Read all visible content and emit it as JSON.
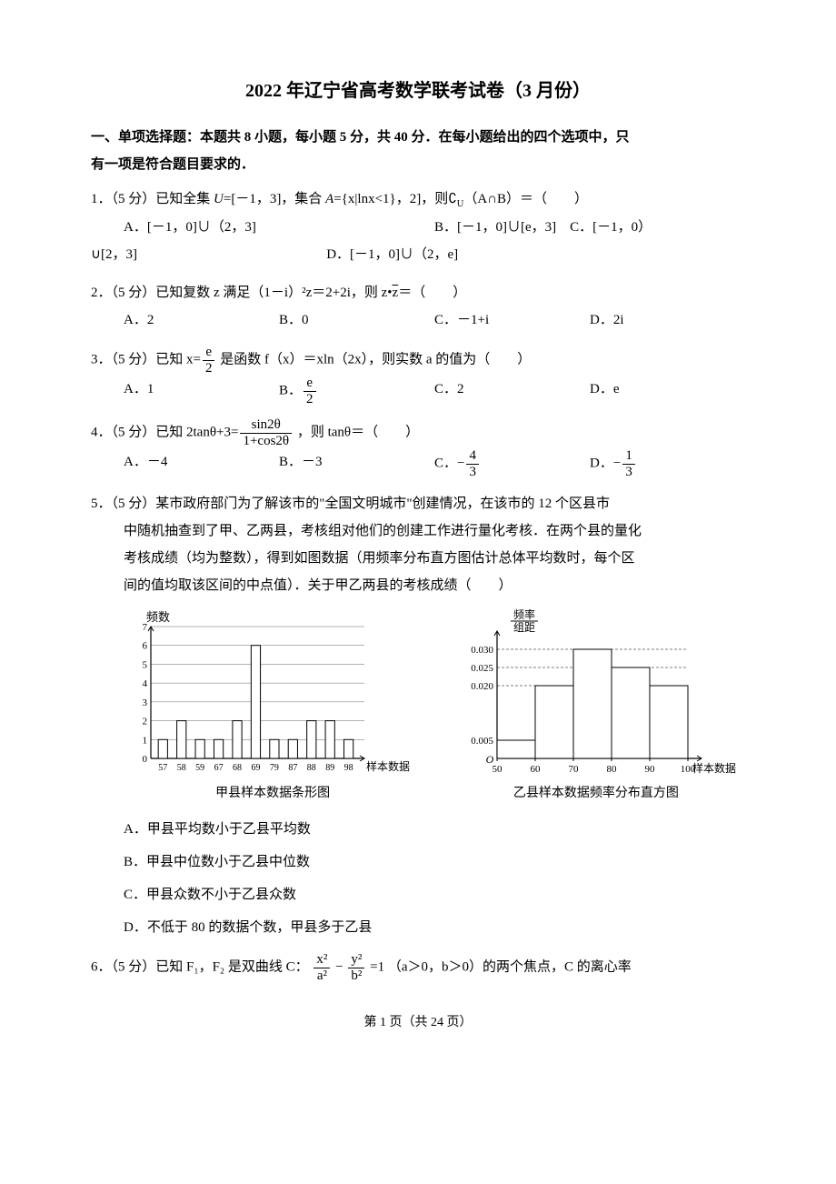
{
  "title": "2022 年辽宁省高考数学联考试卷（3 月份）",
  "section1_header_line1": "一、单项选择题：本题共 8 小题，每小题 5 分，共 40 分．在每小题给出的四个选项中，只",
  "section1_header_line2": "有一项是符合题目要求的．",
  "q1": {
    "text_prefix": "1．（5 分）已知全集 ",
    "text_mid": "=[－1，3]，集合 ",
    "text_end": "={x|lnx<1}，2]，则",
    "text_comp": "（A∩B）＝（　　）",
    "optA": "A．[－1，0]∪（2，3]",
    "optB": "B．[－1，0]∪[e，3]　C．[－1，0）",
    "optC_prefix": "∪[2，3]",
    "optD": "D．[－1，0]∪（2，e]"
  },
  "q2": {
    "text": "2．（5 分）已知复数 z 满足（1－i）²z＝2+2i，则 z•",
    "text_end": "＝（　　）",
    "optA": "A．2",
    "optB": "B．0",
    "optC": "C．－1+i",
    "optD": "D．2i"
  },
  "q3": {
    "text_prefix": "3．（5 分）已知",
    "text_mid": "是函数 f（x）＝xln（2x），则实数 a 的值为（　　）",
    "optA": "A．1",
    "optB": "B．",
    "optC": "C．2",
    "optD": "D．e"
  },
  "q4": {
    "text_prefix": "4．（5 分）已知",
    "text_mid": "，则 tanθ＝（　　）",
    "optA": "A．－4",
    "optB": "B．－3",
    "optC": "C．",
    "optD": "D．",
    "frac1_num": "4",
    "frac1_den": "3",
    "frac2_num": "1",
    "frac2_den": "3"
  },
  "q5": {
    "line1": "5．（5 分）某市政府部门为了解该市的\"全国文明城市\"创建情况，在该市的 12 个区县市",
    "line2": "中随机抽查到了甲、乙两县，考核组对他们的创建工作进行量化考核．在两个县的量化",
    "line3": "考核成绩（均为整数），得到如图数据（用频率分布直方图估计总体平均数时，每个区",
    "line4": "间的值均取该区间的中点值）．关于甲乙两县的考核成绩（　　）",
    "optA": "A．甲县平均数小于乙县平均数",
    "optB": "B．甲县中位数小于乙县中位数",
    "optC": "C．甲县众数不小于乙县众数",
    "optD": "D．不低于 80 的数据个数，甲县多于乙县",
    "chart1_caption": "甲县样本数据条形图",
    "chart2_caption": "乙县样本数据频率分布直方图",
    "chart1": {
      "ylabel": "频数",
      "xlabel": "样本数据",
      "yticks": [
        0,
        1,
        2,
        3,
        4,
        5,
        6,
        7
      ],
      "xticks": [
        "57",
        "58",
        "59",
        "67",
        "68",
        "69",
        "79",
        "87",
        "88",
        "89",
        "98"
      ],
      "values": [
        1,
        2,
        1,
        1,
        2,
        6,
        1,
        1,
        2,
        2,
        1
      ],
      "axis_color": "#000",
      "grid_color": "#666",
      "bar_color": "#ffffff",
      "bar_border": "#000"
    },
    "chart2": {
      "ylabel_top": "频率",
      "ylabel_bot": "组距",
      "xlabel": "样本数据",
      "yticks": [
        "0.005",
        "0.020",
        "0.025",
        "0.030"
      ],
      "ytick_vals": [
        0.005,
        0.02,
        0.025,
        0.03
      ],
      "xticks": [
        "50",
        "60",
        "70",
        "80",
        "90",
        "100"
      ],
      "values": [
        0.005,
        0.02,
        0.03,
        0.025,
        0.02
      ],
      "axis_color": "#000",
      "dash_color": "#000",
      "bar_color": "#ffffff",
      "bar_border": "#000"
    }
  },
  "q6": {
    "text_prefix": "6．（5 分）已知 F₁，F₂ 是双曲线 C：",
    "text_end": "（a＞0，b＞0）的两个焦点，C 的离心率"
  },
  "footer": "第 1 页（共 24 页）"
}
